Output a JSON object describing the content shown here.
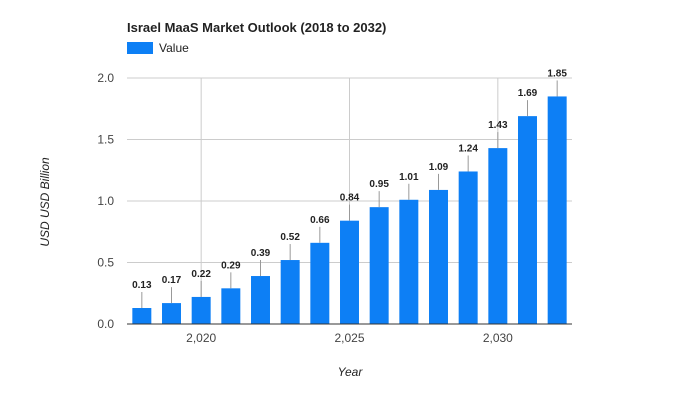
{
  "chart_data": {
    "type": "bar",
    "title": "Israel MaaS Market Outlook (2018 to 2032)",
    "xlabel": "Year",
    "ylabel": "USD USD Billion",
    "x": [
      2018,
      2019,
      2020,
      2021,
      2022,
      2023,
      2024,
      2025,
      2026,
      2027,
      2028,
      2029,
      2030,
      2031,
      2032
    ],
    "series": [
      {
        "name": "Value",
        "color": "#0d7ff5",
        "values": [
          0.13,
          0.17,
          0.22,
          0.29,
          0.39,
          0.52,
          0.66,
          0.84,
          0.95,
          1.01,
          1.09,
          1.24,
          1.43,
          1.69,
          1.85
        ]
      }
    ],
    "data_labels": [
      "0.13",
      "0.17",
      "0.22",
      "0.29",
      "0.39",
      "0.52",
      "0.66",
      "0.84",
      "0.95",
      "1.01",
      "1.09",
      "1.24",
      "1.43",
      "1.69",
      "1.85"
    ],
    "ylim": [
      0,
      2.0
    ],
    "y_ticks": [
      0.0,
      0.5,
      1.0,
      1.5,
      2.0
    ],
    "y_tick_labels": [
      "0.0",
      "0.5",
      "1.0",
      "1.5",
      "2.0"
    ],
    "x_ticks": [
      2020,
      2025,
      2030
    ],
    "x_tick_labels": [
      "2,020",
      "2,025",
      "2,030"
    ],
    "grid": true,
    "legend_position": "top-left"
  }
}
